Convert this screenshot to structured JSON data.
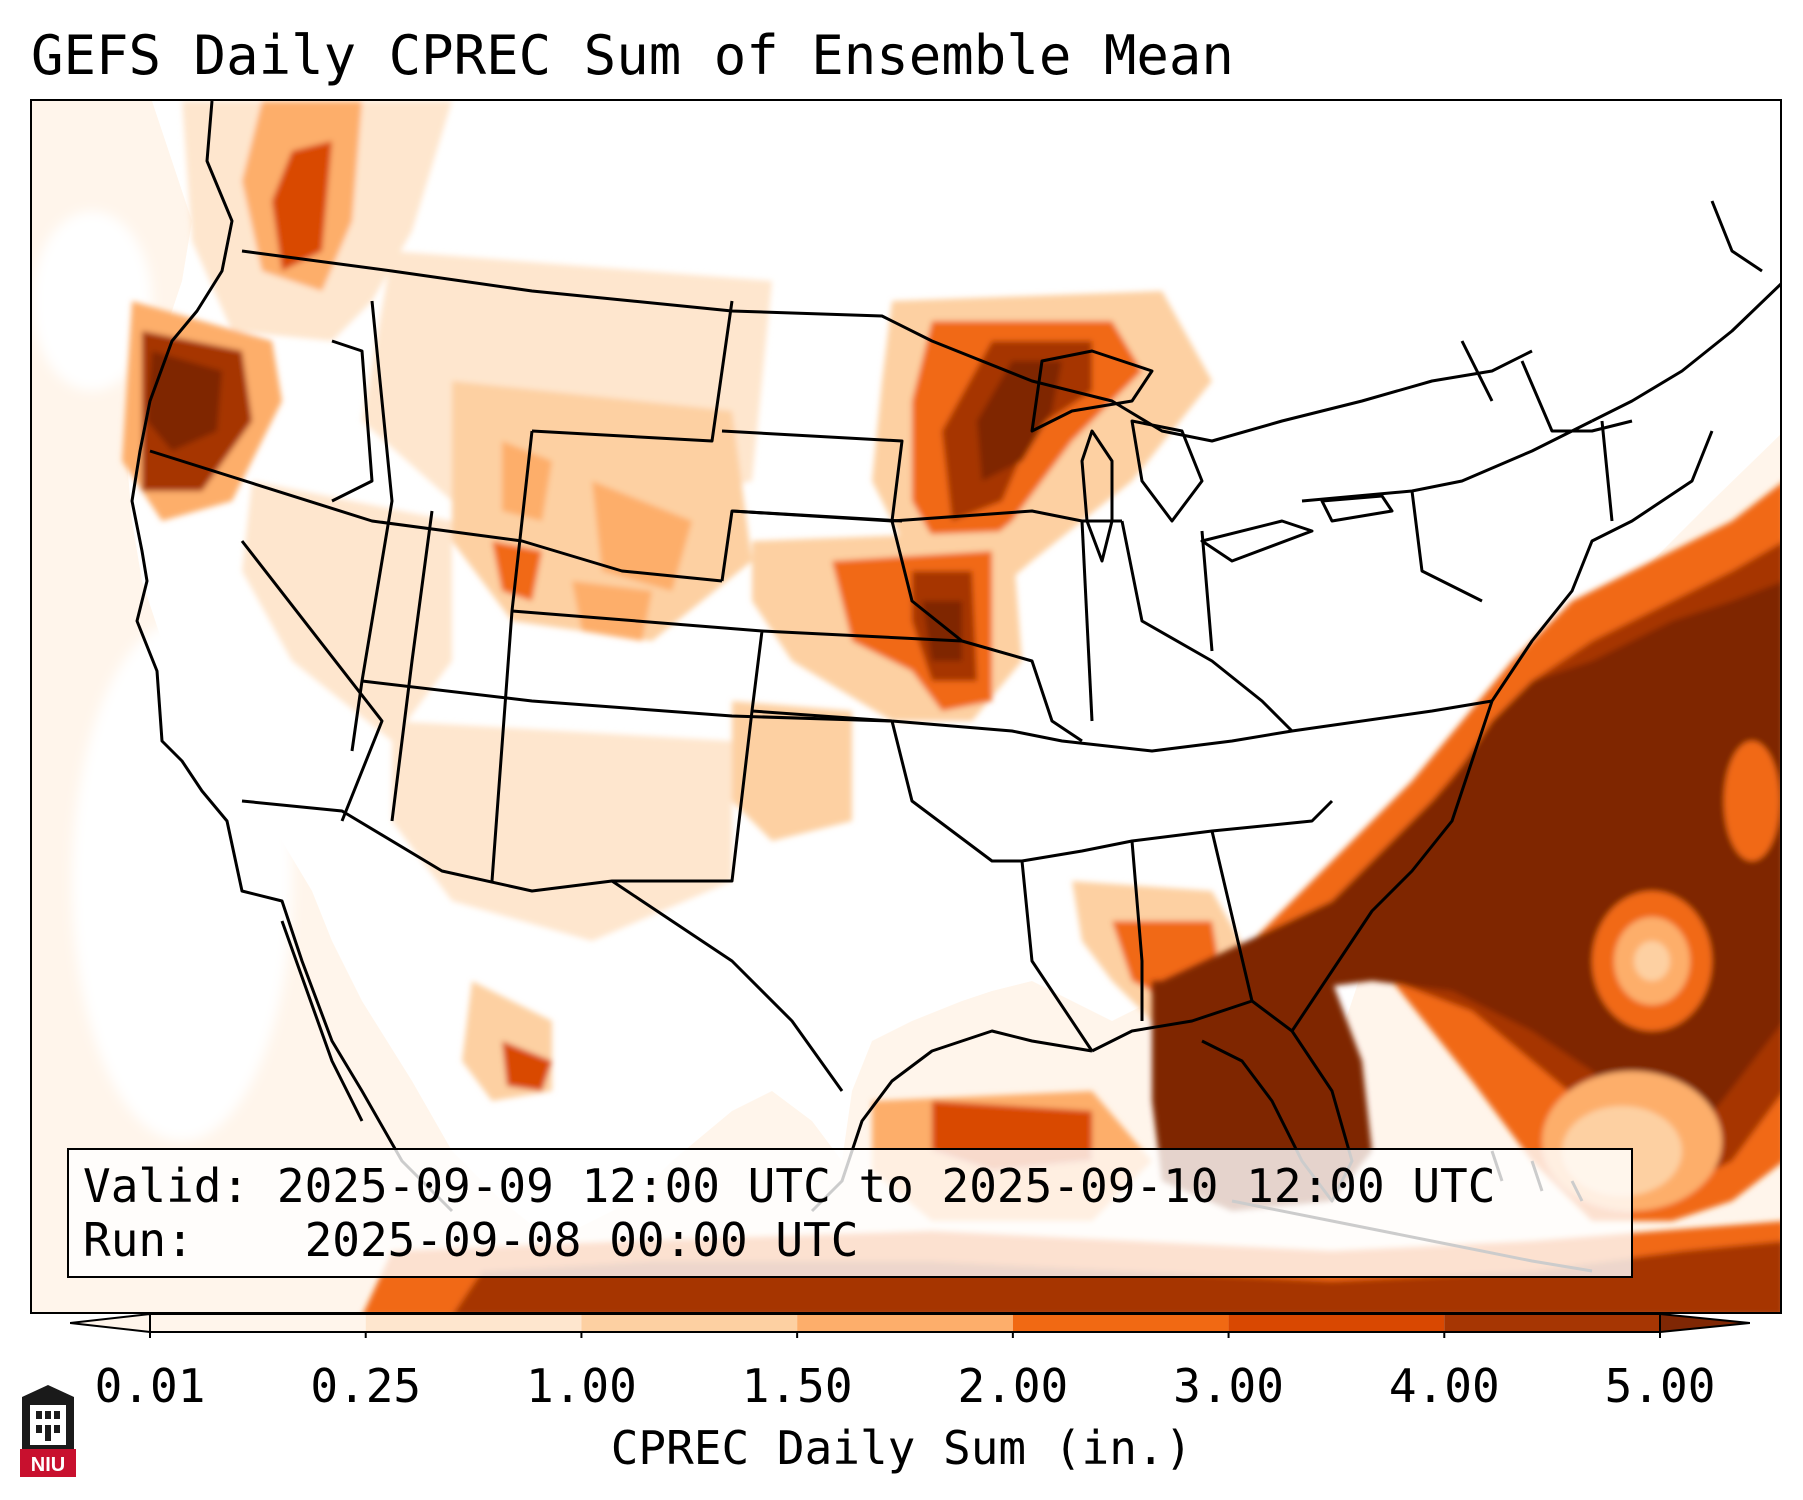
{
  "title": "GEFS Daily CPREC Sum of Ensemble Mean",
  "info": {
    "valid_label": "Valid:",
    "valid_value": "2025-09-09 12:00 UTC to 2025-09-10 12:00 UTC",
    "run_label": "Run:",
    "run_value": "2025-09-08 00:00 UTC"
  },
  "colorbar": {
    "label": "CPREC Daily Sum (in.)",
    "ticks": [
      "0.01",
      "0.25",
      "1.00",
      "1.50",
      "2.00",
      "3.00",
      "4.00",
      "5.00"
    ],
    "colors": [
      "#fff5eb",
      "#fee6ce",
      "#fdd0a2",
      "#fdae6b",
      "#f16913",
      "#d94801",
      "#a63603",
      "#7f2704"
    ],
    "extend": "both"
  },
  "logo": {
    "text": "NIU",
    "color": "#c8102e"
  },
  "colors": {
    "ocean_background": "#fff5eb",
    "land_dry": "#ffffff",
    "boundary": "#000000"
  }
}
